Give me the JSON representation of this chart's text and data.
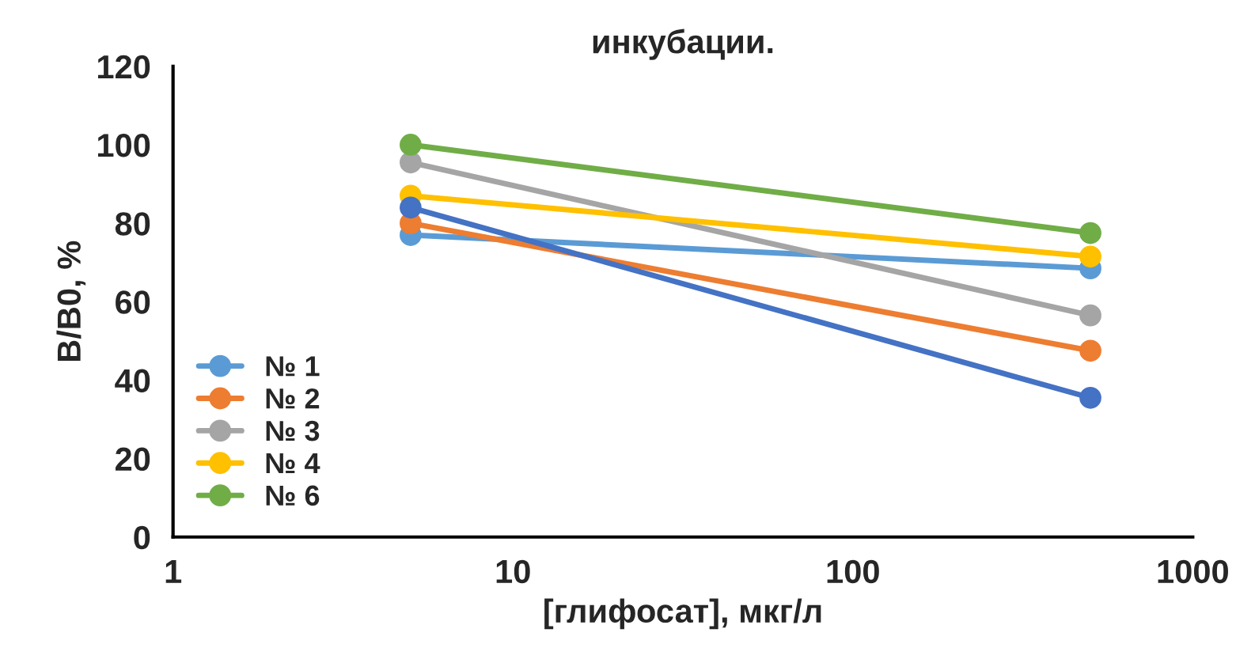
{
  "chart_data": {
    "type": "line",
    "title": "инкубации.",
    "xlabel": "[глифосат], мкг/л",
    "ylabel": "B/B0, %",
    "x": [
      5,
      500
    ],
    "log": "x",
    "xlim": [
      1,
      1000
    ],
    "xticks": [
      1,
      10,
      100,
      1000
    ],
    "ylim": [
      0,
      120
    ],
    "yticks": [
      0,
      20,
      40,
      60,
      80,
      100,
      120
    ],
    "grid": false,
    "legend": "bottom left",
    "marker": "circle",
    "line_style": "solid",
    "series": [
      {
        "name": "№ 1",
        "color": "#5b9bd5",
        "values": [
          77,
          68.5
        ]
      },
      {
        "name": "№ 2",
        "color": "#ed7d31",
        "values": [
          80,
          47.5
        ]
      },
      {
        "name": "№ 3",
        "color": "#a5a5a5",
        "values": [
          95.5,
          56.5
        ]
      },
      {
        "name": "№ 4",
        "color": "#ffc000",
        "values": [
          87,
          71.5
        ]
      },
      {
        "color": "#4472c4",
        "values": [
          84,
          35.5
        ]
      },
      {
        "name": "№ 6",
        "color": "#70ad47",
        "values": [
          100,
          77.5
        ]
      }
    ]
  }
}
